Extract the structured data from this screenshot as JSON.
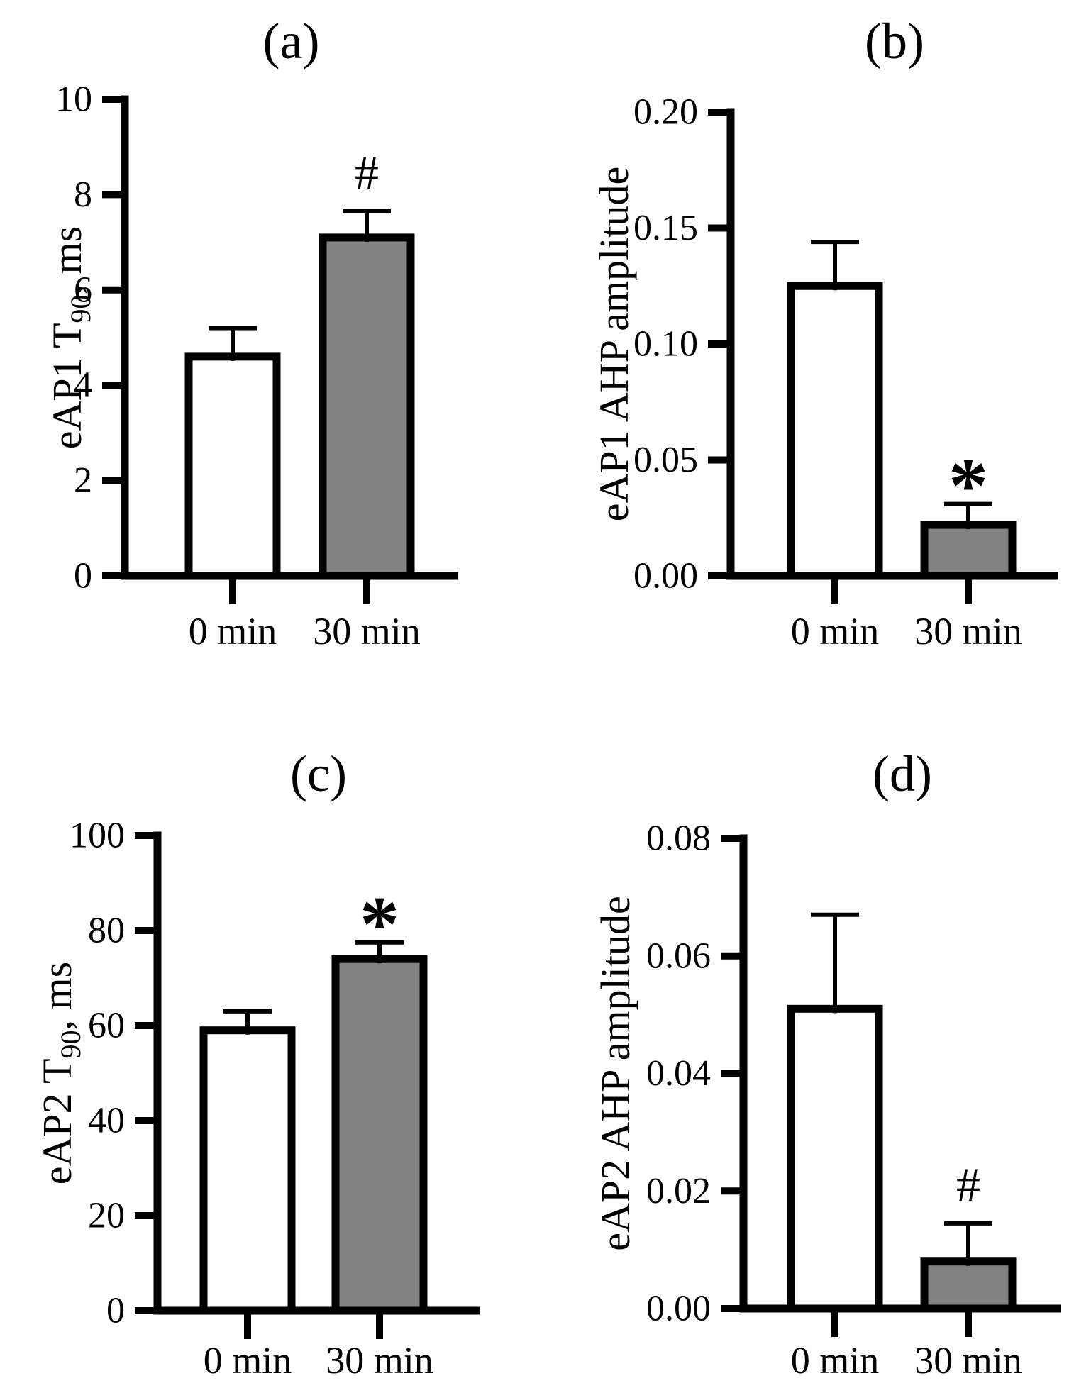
{
  "figure": {
    "kind": "2x2 bar chart figure",
    "background": "#ffffff",
    "colors": {
      "ink": "#000000",
      "bar_white": "#ffffff",
      "bar_gray": "#828282"
    }
  },
  "chart_data": [
    {
      "type": "bar",
      "panel": "(a)",
      "title": "(a)",
      "ylabel": "eAP1 T90, ms",
      "ylabel_rich": [
        {
          "text": "eAP1 T"
        },
        {
          "text": "90",
          "sub": true
        },
        {
          "text": ", ms"
        }
      ],
      "xlabel": "",
      "categories": [
        "0 min",
        "30 min"
      ],
      "values": [
        4.6,
        7.1
      ],
      "errors_plus": [
        0.6,
        0.55
      ],
      "significance": [
        "",
        "#"
      ],
      "ylim": [
        0,
        10
      ],
      "yticks": [
        0,
        2,
        4,
        6,
        8,
        10
      ],
      "ytick_labels": [
        "0",
        "2",
        "4",
        "6",
        "8",
        "10"
      ],
      "bar_fills": [
        "#ffffff",
        "#828282"
      ],
      "grid": false,
      "legend": "none"
    },
    {
      "type": "bar",
      "panel": "(b)",
      "title": "(b)",
      "ylabel": "eAP1 AHP amplitude",
      "ylabel_rich": [
        {
          "text": "eAP1 AHP amplitude"
        }
      ],
      "xlabel": "",
      "categories": [
        "0 min",
        "30 min"
      ],
      "values": [
        0.125,
        0.022
      ],
      "errors_plus": [
        0.019,
        0.009
      ],
      "significance": [
        "",
        "*"
      ],
      "ylim": [
        0,
        0.2
      ],
      "yticks": [
        0,
        0.05,
        0.1,
        0.15,
        0.2
      ],
      "ytick_labels": [
        "0.00",
        "0.05",
        "0.10",
        "0.15",
        "0.20"
      ],
      "bar_fills": [
        "#ffffff",
        "#828282"
      ],
      "grid": false,
      "legend": "none"
    },
    {
      "type": "bar",
      "panel": "(c)",
      "title": "(c)",
      "ylabel": "eAP2 T90, ms",
      "ylabel_rich": [
        {
          "text": "eAP2 T"
        },
        {
          "text": "90",
          "sub": true
        },
        {
          "text": ", ms"
        }
      ],
      "xlabel": "",
      "categories": [
        "0 min",
        "30 min"
      ],
      "values": [
        59,
        74
      ],
      "errors_plus": [
        4,
        3.5
      ],
      "significance": [
        "",
        "*"
      ],
      "ylim": [
        0,
        100
      ],
      "yticks": [
        0,
        20,
        40,
        60,
        80,
        100
      ],
      "ytick_labels": [
        "0",
        "20",
        "40",
        "60",
        "80",
        "100"
      ],
      "bar_fills": [
        "#ffffff",
        "#828282"
      ],
      "grid": false,
      "legend": "none"
    },
    {
      "type": "bar",
      "panel": "(d)",
      "title": "(d)",
      "ylabel": "eAP2 AHP amplitude",
      "ylabel_rich": [
        {
          "text": "eAP2 AHP amplitude"
        }
      ],
      "xlabel": "",
      "categories": [
        "0 min",
        "30 min"
      ],
      "values": [
        0.051,
        0.008
      ],
      "errors_plus": [
        0.016,
        0.0065
      ],
      "significance": [
        "",
        "#"
      ],
      "ylim": [
        0,
        0.08
      ],
      "yticks": [
        0,
        0.02,
        0.04,
        0.06,
        0.08
      ],
      "ytick_labels": [
        "0.00",
        "0.02",
        "0.04",
        "0.06",
        "0.08"
      ],
      "bar_fills": [
        "#ffffff",
        "#828282"
      ],
      "grid": false,
      "legend": "none"
    }
  ]
}
